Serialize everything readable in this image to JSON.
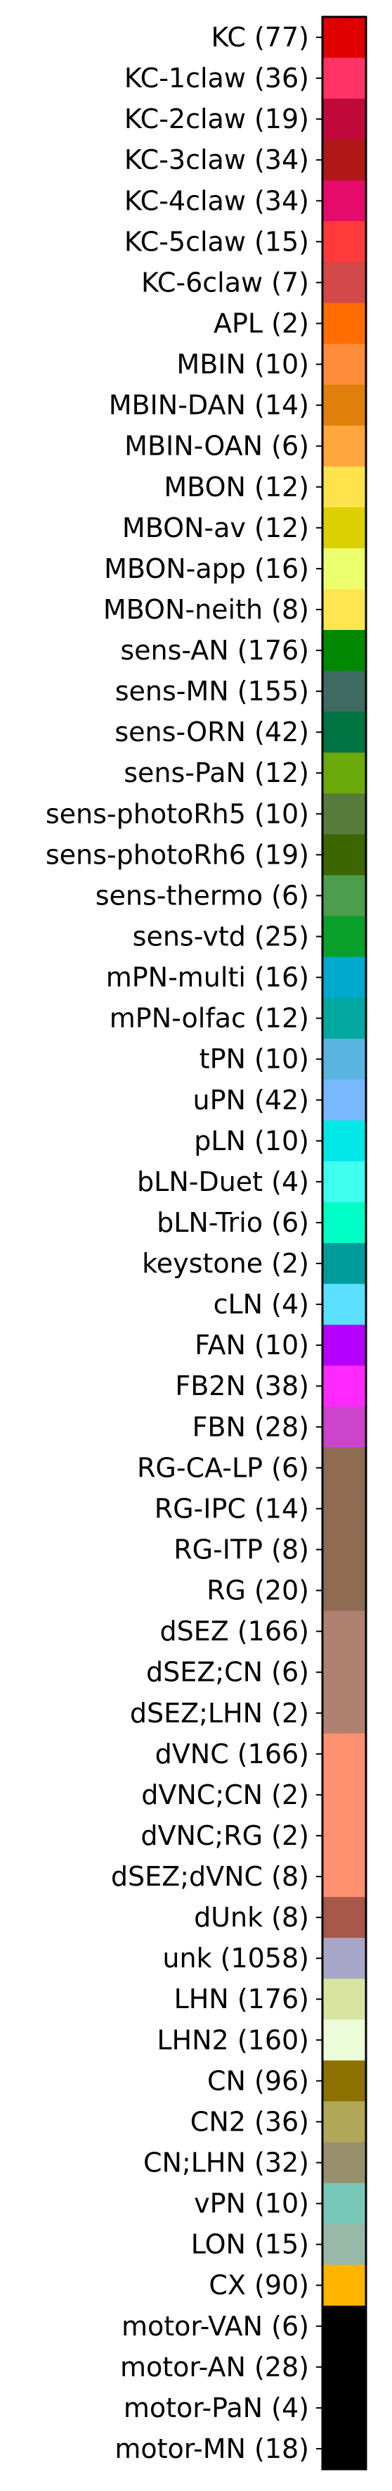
{
  "chart_data": {
    "type": "colorbar-legend",
    "orientation": "vertical",
    "categories": [
      {
        "label": "KC (77)",
        "color": "#e00000"
      },
      {
        "label": "KC-1claw (36)",
        "color": "#ff3366"
      },
      {
        "label": "KC-2claw (19)",
        "color": "#c0083a"
      },
      {
        "label": "KC-3claw (34)",
        "color": "#b01818"
      },
      {
        "label": "KC-4claw (34)",
        "color": "#e60a6a"
      },
      {
        "label": "KC-5claw (15)",
        "color": "#ff3a3a"
      },
      {
        "label": "KC-6claw (7)",
        "color": "#d34848"
      },
      {
        "label": "APL (2)",
        "color": "#ff6d00"
      },
      {
        "label": "MBIN (10)",
        "color": "#ff8c3a"
      },
      {
        "label": "MBIN-DAN (14)",
        "color": "#e0800a"
      },
      {
        "label": "MBIN-OAN (6)",
        "color": "#ffa63c"
      },
      {
        "label": "MBON (12)",
        "color": "#ffe24c"
      },
      {
        "label": "MBON-av (12)",
        "color": "#ddd000"
      },
      {
        "label": "MBON-app (16)",
        "color": "#ecff6c"
      },
      {
        "label": "MBON-neith (8)",
        "color": "#ffe650"
      },
      {
        "label": "sens-AN (176)",
        "color": "#008800"
      },
      {
        "label": "sens-MN (155)",
        "color": "#3f6b63"
      },
      {
        "label": "sens-ORN (42)",
        "color": "#007343"
      },
      {
        "label": "sens-PaN (12)",
        "color": "#6aaa0b"
      },
      {
        "label": "sens-photoRh5 (10)",
        "color": "#577b3b"
      },
      {
        "label": "sens-photoRh6 (19)",
        "color": "#3c6600"
      },
      {
        "label": "sens-thermo (6)",
        "color": "#4c9e4c"
      },
      {
        "label": "sens-vtd (25)",
        "color": "#0a9e2a"
      },
      {
        "label": "mPN-multi (16)",
        "color": "#00aacc"
      },
      {
        "label": "mPN-olfac (12)",
        "color": "#00a8a0"
      },
      {
        "label": "tPN (10)",
        "color": "#5ab4e0"
      },
      {
        "label": "uPN (42)",
        "color": "#78b8ff"
      },
      {
        "label": "pLN (10)",
        "color": "#00e8e8"
      },
      {
        "label": "bLN-Duet (4)",
        "color": "#40ffee"
      },
      {
        "label": "bLN-Trio (6)",
        "color": "#00ffc4"
      },
      {
        "label": "keystone (2)",
        "color": "#009c9c"
      },
      {
        "label": "cLN (4)",
        "color": "#5ce0ff"
      },
      {
        "label": "FAN (10)",
        "color": "#b600ff"
      },
      {
        "label": "FB2N (38)",
        "color": "#ff28ff"
      },
      {
        "label": "FBN (28)",
        "color": "#cc44cc"
      },
      {
        "label": "RG-CA-LP (6)",
        "color": "#8f6b52"
      },
      {
        "label": "RG-IPC (14)",
        "color": "#8f6b52"
      },
      {
        "label": "RG-ITP (8)",
        "color": "#8f6b52"
      },
      {
        "label": "RG (20)",
        "color": "#8f6b52"
      },
      {
        "label": "dSEZ (166)",
        "color": "#b08070"
      },
      {
        "label": "dSEZ;CN (6)",
        "color": "#b08070"
      },
      {
        "label": "dSEZ;LHN (2)",
        "color": "#b08070"
      },
      {
        "label": "dVNC (166)",
        "color": "#ff9070"
      },
      {
        "label": "dVNC;CN (2)",
        "color": "#ff9070"
      },
      {
        "label": "dVNC;RG (2)",
        "color": "#ff9070"
      },
      {
        "label": "dSEZ;dVNC (8)",
        "color": "#ff9070"
      },
      {
        "label": "dUnk (8)",
        "color": "#a85848"
      },
      {
        "label": "unk (1058)",
        "color": "#a8a6c8"
      },
      {
        "label": "LHN (176)",
        "color": "#d8e4a0"
      },
      {
        "label": "LHN2 (160)",
        "color": "#ecfcd8"
      },
      {
        "label": "CN (96)",
        "color": "#8c7000"
      },
      {
        "label": "CN2 (36)",
        "color": "#b0a858"
      },
      {
        "label": "CN;LHN (32)",
        "color": "#98906c"
      },
      {
        "label": "vPN (10)",
        "color": "#78c8b8"
      },
      {
        "label": "LON (15)",
        "color": "#98b8a8"
      },
      {
        "label": "CX (90)",
        "color": "#ffb400"
      },
      {
        "label": "motor-VAN (6)",
        "color": "#000000"
      },
      {
        "label": "motor-AN (28)",
        "color": "#000000"
      },
      {
        "label": "motor-PaN (4)",
        "color": "#000000"
      },
      {
        "label": "motor-MN (18)",
        "color": "#000000"
      }
    ]
  }
}
